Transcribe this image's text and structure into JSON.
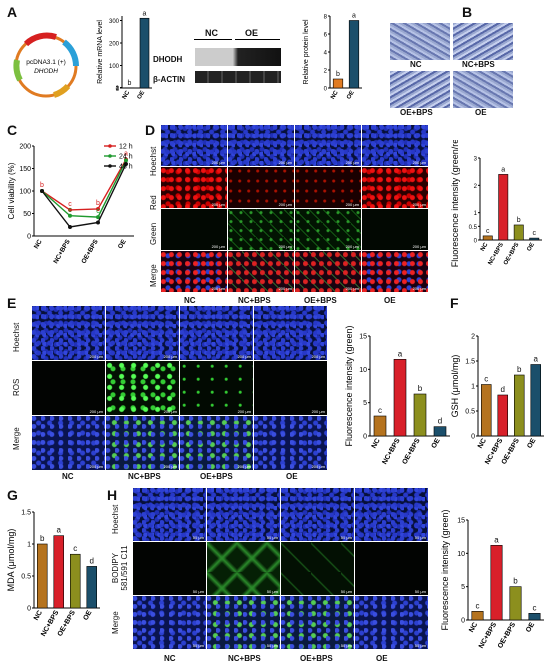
{
  "panels": {
    "A": {
      "label": "A",
      "plasmid": {
        "name": "pcDNA3.1 (+)",
        "gene": "DHODH"
      },
      "mrna": {
        "ylabel": "Relative mRNA level",
        "groups": [
          "NC",
          "OE"
        ],
        "letters": [
          "b",
          "a"
        ]
      },
      "blot": {
        "headers": [
          "NC",
          "OE"
        ],
        "rows": [
          "DHODH",
          "β-ACTIN"
        ]
      },
      "protein": {
        "ylabel": "Relative protein level",
        "groups": [
          "NC",
          "OE"
        ],
        "letters": [
          "b",
          "a"
        ]
      }
    },
    "B": {
      "label": "B",
      "images": [
        "NC",
        "NC+BPS",
        "OE+BPS",
        "OE"
      ]
    },
    "C": {
      "label": "C",
      "ylabel": "Cell viability (%)",
      "legend": [
        "12 h",
        "24 h",
        "48 h"
      ]
    },
    "D": {
      "label": "D",
      "rows": [
        "Hoechst",
        "Red",
        "Green",
        "Merge"
      ],
      "cols": [
        "NC",
        "NC+BPS",
        "OE+BPS",
        "OE"
      ],
      "ylabel": "Fluorescence intensity (green/red)"
    },
    "E": {
      "label": "E",
      "rows": [
        "Hoechst",
        "ROS",
        "Merge"
      ],
      "cols": [
        "NC",
        "NC+BPS",
        "OE+BPS",
        "OE"
      ],
      "ylabel": "Fluorescence intensity (green)"
    },
    "F": {
      "label": "F",
      "ylabel": "GSH (μmol/mg)"
    },
    "G": {
      "label": "G",
      "ylabel": "MDA (μmol/mg)"
    },
    "H": {
      "label": "H",
      "rows": [
        "Hoechst",
        "BODIPY 581/591 C11",
        "Merge"
      ],
      "cols": [
        "NC",
        "NC+BPS",
        "OE+BPS",
        "OE"
      ],
      "ylabel": "Fluorescence intensity (green)"
    },
    "scale_bar": "200 μm",
    "scale_bar_h": "50 μm"
  },
  "chart_data": [
    {
      "id": "A-mrna",
      "type": "bar",
      "categories": [
        "NC",
        "OE"
      ],
      "values": [
        1,
        310
      ],
      "letters": [
        "b",
        "a"
      ],
      "ylabel": "Relative mRNA level",
      "ylim": [
        0,
        320
      ],
      "yticks": [
        0,
        1,
        2,
        100,
        200,
        300
      ],
      "colors": [
        "#e07b22",
        "#1b4f6b"
      ]
    },
    {
      "id": "A-protein",
      "type": "bar",
      "categories": [
        "NC",
        "OE"
      ],
      "values": [
        1,
        7.5
      ],
      "letters": [
        "b",
        "a"
      ],
      "ylabel": "Relative protein level",
      "ylim": [
        0,
        8
      ],
      "yticks": [
        0,
        2,
        4,
        6,
        8
      ],
      "colors": [
        "#e07b22",
        "#1b4f6b"
      ]
    },
    {
      "id": "C",
      "type": "line",
      "categories": [
        "NC",
        "NC+BPS",
        "OE+BPS",
        "OE"
      ],
      "ylabel": "Cell viability (%)",
      "ylim": [
        0,
        200
      ],
      "yticks": [
        0,
        50,
        100,
        150,
        200
      ],
      "series": [
        {
          "name": "12 h",
          "color": "#d62020",
          "values": [
            100,
            58,
            60,
            170
          ],
          "letters": [
            "b",
            "c",
            "b",
            "a"
          ]
        },
        {
          "name": "24 h",
          "color": "#1f9a2f",
          "values": [
            100,
            45,
            42,
            168
          ],
          "letters": [
            "",
            "c",
            "c",
            ""
          ]
        },
        {
          "name": "48 h",
          "color": "#111111",
          "values": [
            100,
            20,
            30,
            160
          ],
          "letters": [
            "",
            "",
            "",
            ""
          ]
        }
      ]
    },
    {
      "id": "D",
      "type": "bar",
      "categories": [
        "NC",
        "NC+BPS",
        "OE+BPS",
        "OE"
      ],
      "values": [
        0.15,
        2.4,
        0.55,
        0.07
      ],
      "letters": [
        "c",
        "a",
        "b",
        "c"
      ],
      "ylabel": "Fluorescence intensity (green/red)",
      "ylim": [
        0,
        3
      ],
      "yticks": [
        0.0,
        0.5,
        1.0,
        2.0,
        3.0
      ],
      "colors": [
        "#b5731e",
        "#d8202a",
        "#8c8f1e",
        "#1b4f6b"
      ]
    },
    {
      "id": "E",
      "type": "bar",
      "categories": [
        "NC",
        "NC+BPS",
        "OE+BPS",
        "OE"
      ],
      "values": [
        3,
        11.5,
        6.3,
        1.4
      ],
      "letters": [
        "c",
        "a",
        "b",
        "d"
      ],
      "ylabel": "Fluorescence intensity (green)",
      "ylim": [
        0,
        15
      ],
      "yticks": [
        0,
        5,
        10,
        15
      ],
      "colors": [
        "#b5731e",
        "#d8202a",
        "#8c8f1e",
        "#1b4f6b"
      ]
    },
    {
      "id": "F",
      "type": "bar",
      "categories": [
        "NC",
        "NC+BPS",
        "OE+BPS",
        "OE"
      ],
      "values": [
        1.03,
        0.82,
        1.22,
        1.43
      ],
      "letters": [
        "c",
        "d",
        "b",
        "a"
      ],
      "ylabel": "GSH (μmol/mg)",
      "ylim": [
        0,
        2.0
      ],
      "yticks": [
        0.0,
        0.5,
        1.0,
        1.5,
        2.0
      ],
      "colors": [
        "#b5731e",
        "#d8202a",
        "#8c8f1e",
        "#1b4f6b"
      ]
    },
    {
      "id": "G",
      "type": "bar",
      "categories": [
        "NC",
        "NC+BPS",
        "OE+BPS",
        "OE"
      ],
      "values": [
        1.0,
        1.13,
        0.84,
        0.65
      ],
      "letters": [
        "b",
        "a",
        "c",
        "d"
      ],
      "ylabel": "MDA (μmol/mg)",
      "ylim": [
        0,
        1.5
      ],
      "yticks": [
        0.0,
        0.5,
        1.0,
        1.5
      ],
      "colors": [
        "#b5731e",
        "#d8202a",
        "#8c8f1e",
        "#1b4f6b"
      ]
    },
    {
      "id": "H",
      "type": "bar",
      "categories": [
        "NC",
        "NC+BPS",
        "OE+BPS",
        "OE"
      ],
      "values": [
        1.3,
        11.2,
        5.0,
        1.0
      ],
      "letters": [
        "c",
        "a",
        "b",
        "c"
      ],
      "ylabel": "Fluorescence intensity (green)",
      "ylim": [
        0,
        15
      ],
      "yticks": [
        0,
        5,
        10,
        15
      ],
      "colors": [
        "#b5731e",
        "#d8202a",
        "#8c8f1e",
        "#1b4f6b"
      ]
    }
  ]
}
